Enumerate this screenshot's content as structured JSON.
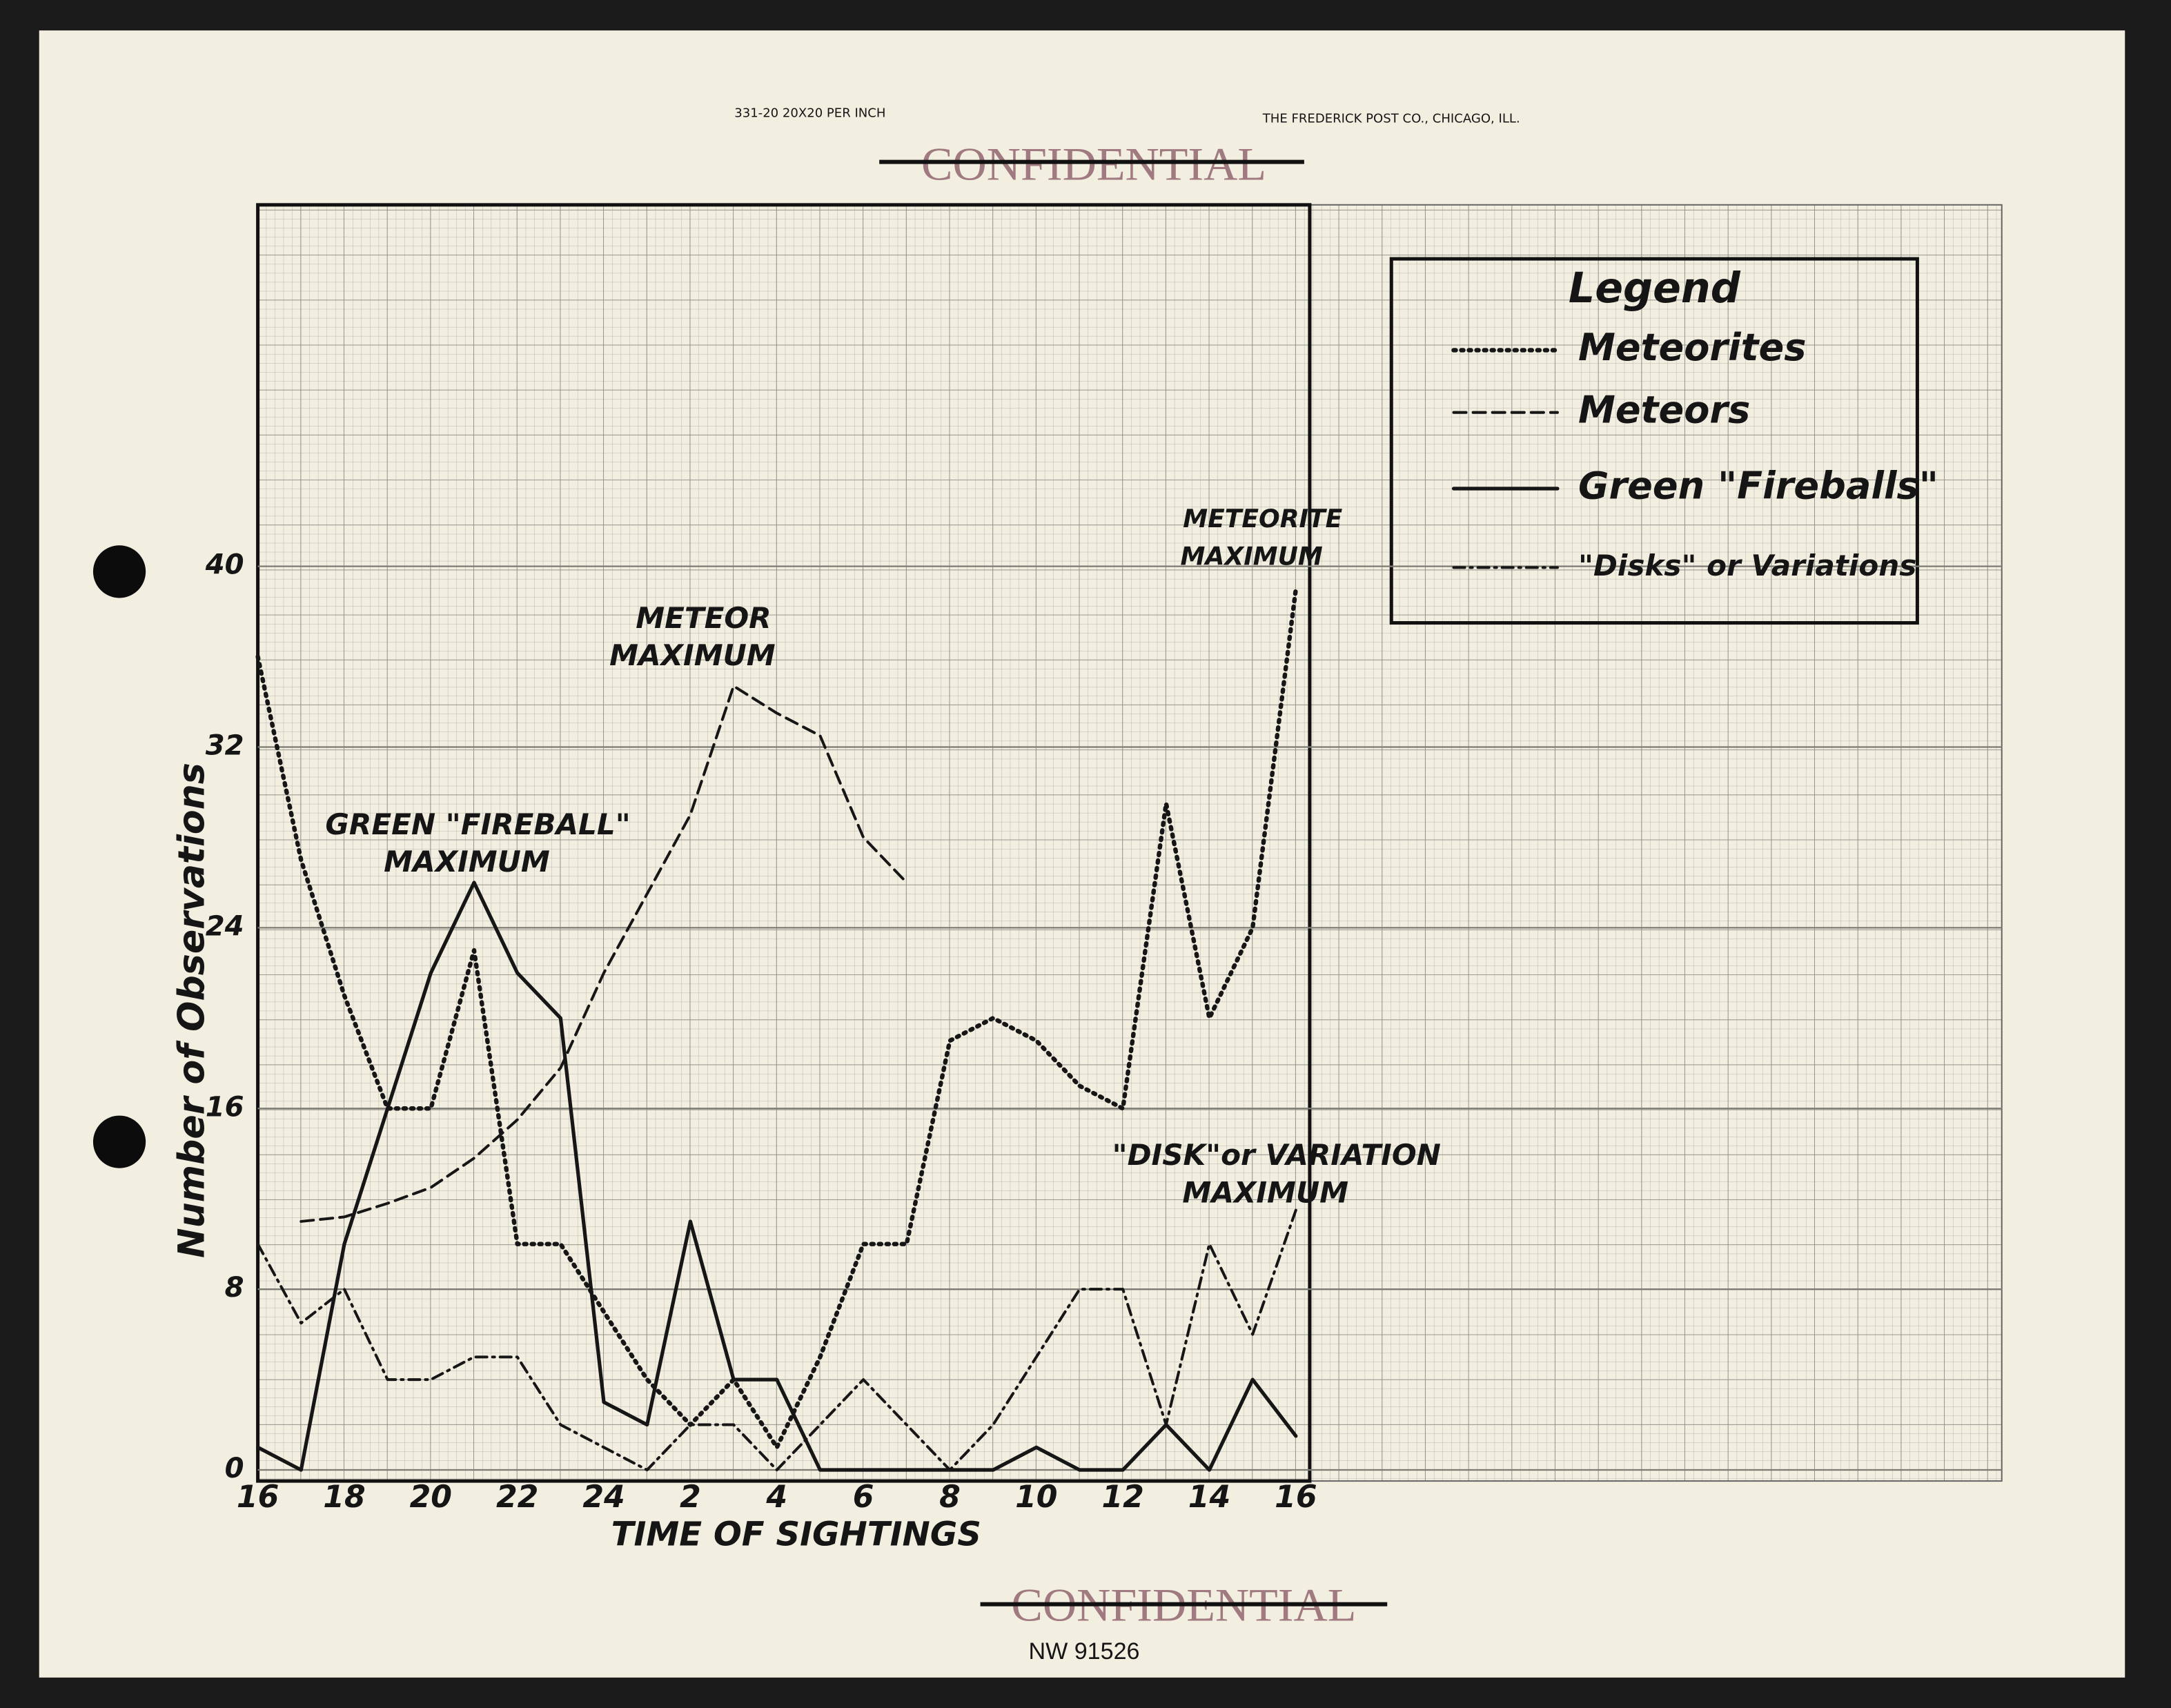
{
  "header": {
    "paper": "331-20 20X20 PER INCH",
    "maker": "THE FREDERICK POST CO., CHICAGO, ILL.",
    "stamp_top": "CONFIDENTIAL"
  },
  "footer": {
    "stamp_bottom": "CONFIDENTIAL",
    "id": "NW 91526"
  },
  "chart_data": {
    "type": "line",
    "x_label": "TIME OF SIGHTINGS",
    "y_label": "Number of Observations",
    "legend_title": "Legend",
    "legend": "top-right",
    "grid": true,
    "categories": [
      "16",
      null,
      "18",
      null,
      "20",
      null,
      "22",
      null,
      "24",
      null,
      "2",
      null,
      "4",
      null,
      "6",
      null,
      "8",
      null,
      "10",
      null,
      "12",
      null,
      "14",
      null,
      "16"
    ],
    "ylim": [
      0,
      56
    ],
    "yticks": [
      0,
      8,
      16,
      24,
      32,
      40
    ],
    "series": [
      {
        "name": "Meteorites",
        "color": "#161616",
        "style": "dotted",
        "values": [
          36,
          27,
          21,
          16,
          16,
          23,
          10,
          10,
          7,
          4,
          2,
          4,
          1,
          5,
          10,
          10,
          19,
          20,
          19,
          17,
          16,
          29.5,
          20,
          24,
          39
        ]
      },
      {
        "name": "Meteors",
        "color": "#161616",
        "style": "dashed",
        "values": [
          null,
          11,
          11.2,
          11.8,
          12.5,
          13.8,
          15.5,
          17.8,
          22,
          25.5,
          29,
          34.7,
          33.5,
          32.5,
          28,
          26,
          null,
          null,
          null,
          null,
          null,
          null,
          null,
          null,
          null
        ]
      },
      {
        "name": "Green \"Fireballs\"",
        "color": "#161616",
        "style": "solid",
        "values": [
          1,
          0,
          10,
          16,
          22,
          26,
          22,
          20,
          3,
          2,
          11,
          4,
          4,
          0,
          0,
          0,
          0,
          0,
          1,
          0,
          0,
          2,
          0,
          4,
          1.5
        ]
      },
      {
        "name": "\"Disks\" or Variations",
        "color": "#161616",
        "style": "dashdot",
        "values": [
          10,
          6.5,
          8,
          4,
          4,
          5,
          5,
          2,
          1,
          0,
          2,
          2,
          0,
          2,
          4,
          2,
          0,
          2,
          5,
          8,
          8,
          2,
          10,
          6,
          11.5
        ]
      }
    ],
    "annotations": [
      {
        "lines": [
          "GREEN \"FIREBALL\"",
          "MAXIMUM"
        ]
      },
      {
        "lines": [
          "METEOR",
          "MAXIMUM"
        ]
      },
      {
        "lines": [
          "METEORITE",
          "MAXIMUM"
        ]
      },
      {
        "lines": [
          "\"DISK\"or VARIATION",
          "MAXIMUM"
        ]
      }
    ]
  }
}
